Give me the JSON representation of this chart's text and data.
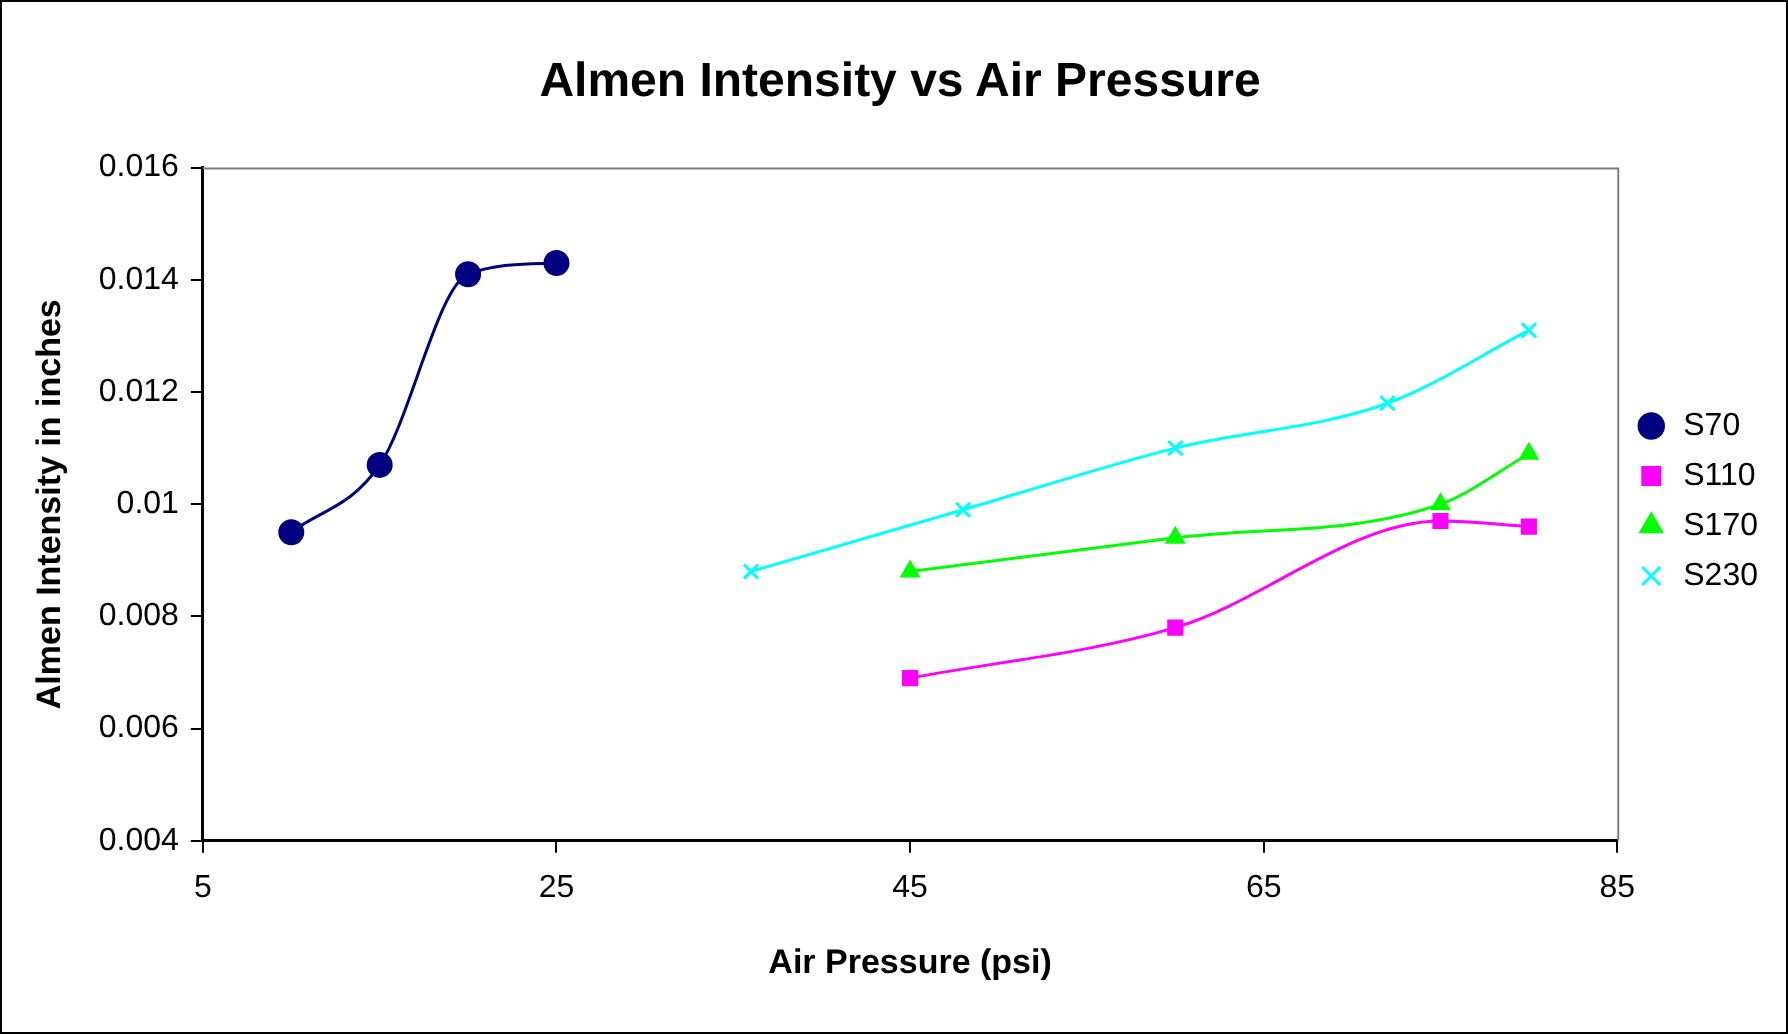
{
  "chart_data": {
    "type": "line",
    "title": "Almen Intensity vs Air Pressure",
    "xlabel": "Air Pressure (psi)",
    "ylabel": "Almen Intensity in inches",
    "xlim": [
      5,
      85
    ],
    "xticks": [
      5,
      25,
      45,
      65,
      85
    ],
    "ylim": [
      0.004,
      0.016
    ],
    "yticks": [
      0.004,
      0.006,
      0.008,
      0.01,
      0.012,
      0.014,
      0.016
    ],
    "grid": false,
    "legend": "right",
    "series": [
      {
        "name": "S70",
        "color": "#000080",
        "marker": "circle",
        "x": [
          10,
          15,
          20,
          25
        ],
        "values": [
          0.0095,
          0.0107,
          0.0141,
          0.0143
        ]
      },
      {
        "name": "S110",
        "color": "#ff00ff",
        "marker": "square",
        "x": [
          45,
          60,
          75,
          80
        ],
        "values": [
          0.0069,
          0.0078,
          0.0097,
          0.0096
        ]
      },
      {
        "name": "S170",
        "color": "#00ff00",
        "marker": "triangle",
        "x": [
          45,
          60,
          75,
          80
        ],
        "values": [
          0.0088,
          0.0094,
          0.01,
          0.0109
        ]
      },
      {
        "name": "S230",
        "color": "#00ffff",
        "marker": "cross",
        "x": [
          36,
          48,
          60,
          72,
          80
        ],
        "values": [
          0.0088,
          0.0099,
          0.011,
          0.0118,
          0.0131
        ]
      }
    ]
  }
}
